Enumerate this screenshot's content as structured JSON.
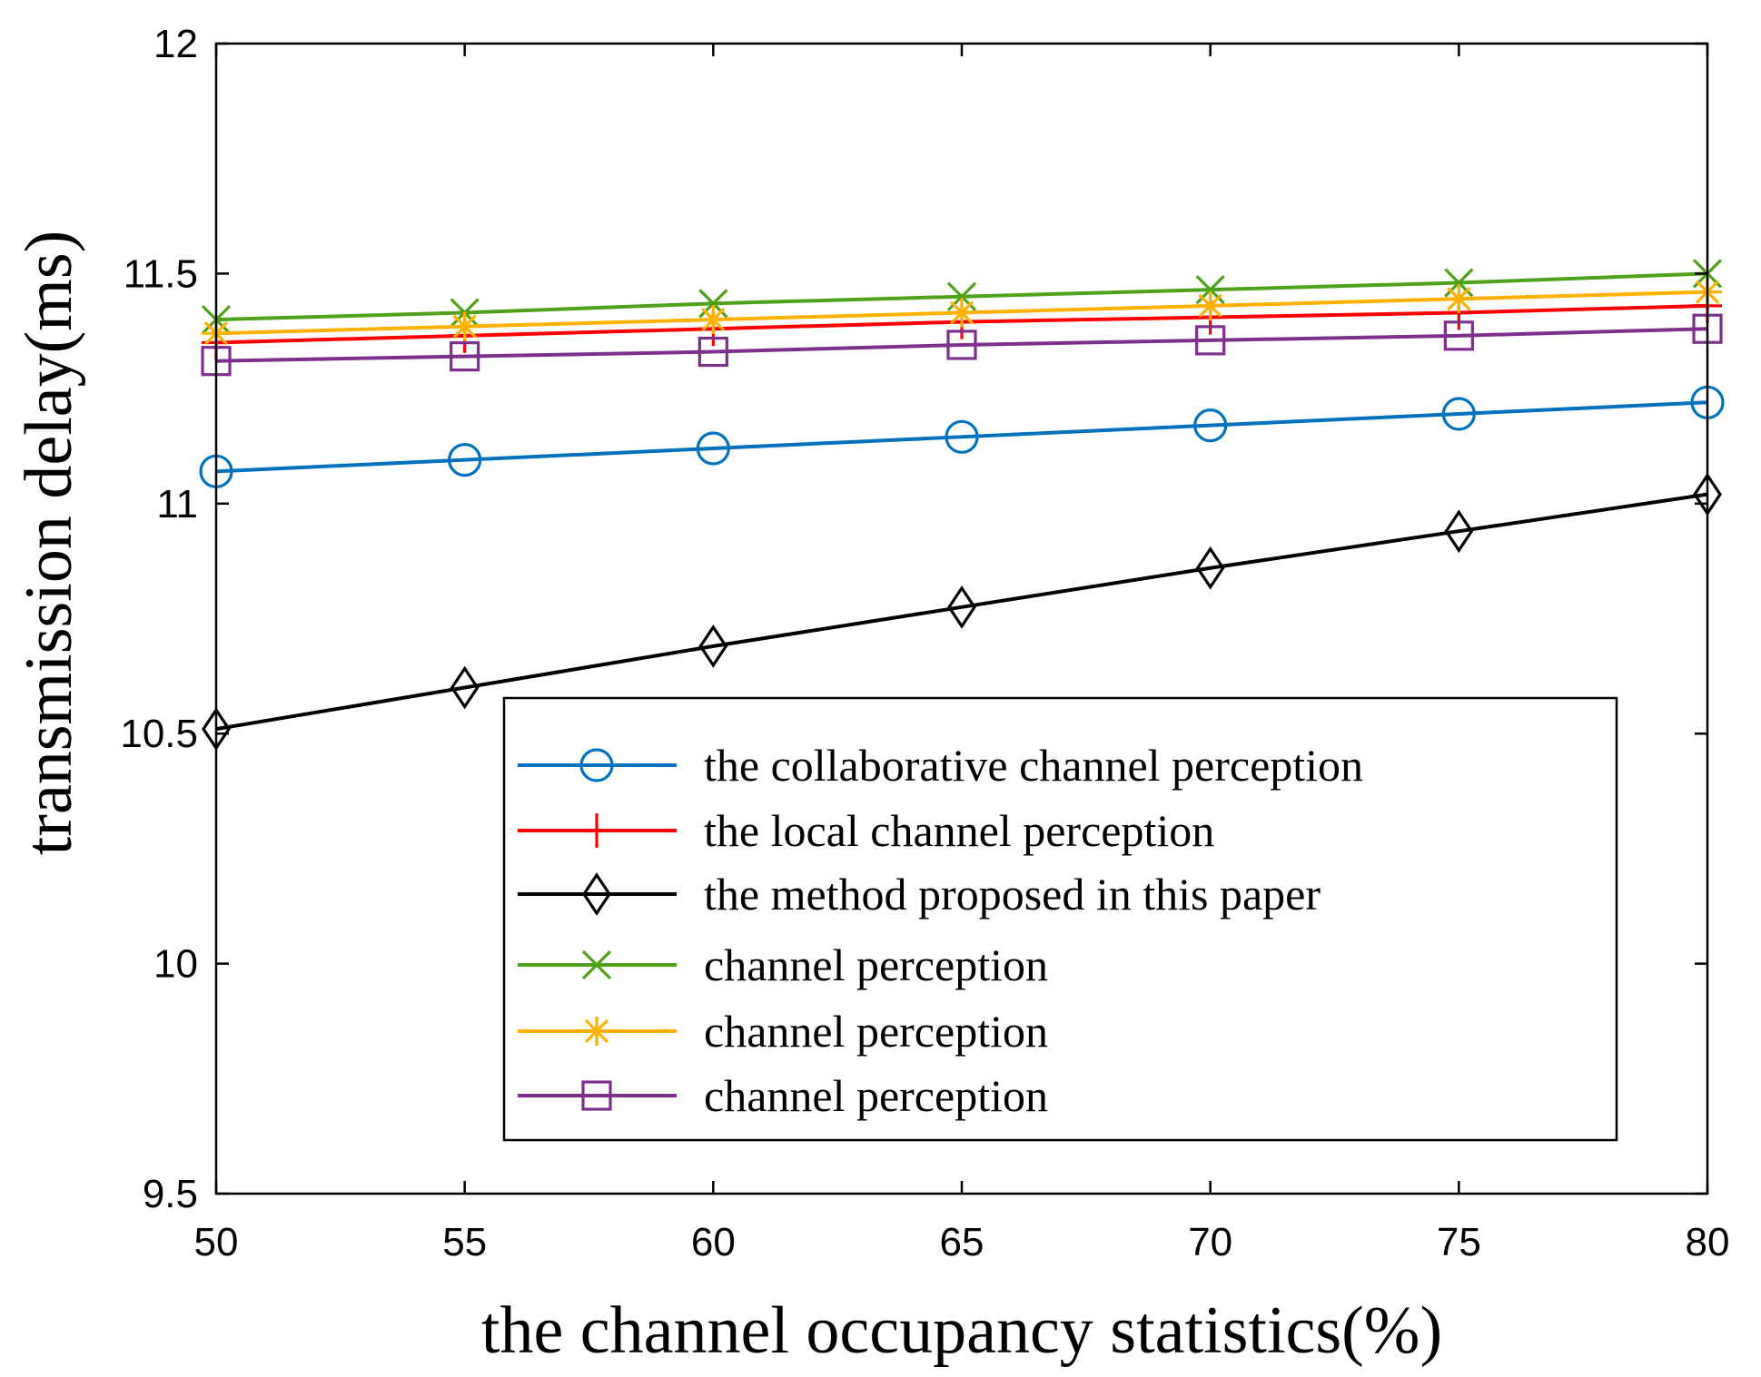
{
  "chart_data": {
    "type": "line",
    "title": "",
    "xlabel": "the channel occupancy statistics(%)",
    "ylabel": "transmission delay(ms)",
    "x": [
      50,
      55,
      60,
      65,
      70,
      75,
      80
    ],
    "xlim": [
      50,
      80
    ],
    "ylim": [
      9.5,
      12
    ],
    "xticks": [
      50,
      55,
      60,
      65,
      70,
      75,
      80
    ],
    "yticks": [
      9.5,
      10,
      10.5,
      11,
      11.5,
      12
    ],
    "xtick_labels": [
      "50",
      "55",
      "60",
      "65",
      "70",
      "75",
      "80"
    ],
    "ytick_labels": [
      "9.5",
      "10",
      "10.5",
      "11",
      "11.5",
      "12"
    ],
    "grid": false,
    "legend_position": "bottom-right",
    "series": [
      {
        "name": "the collaborative channel perception",
        "color": "#0072BD",
        "marker": "circle",
        "values": [
          11.07,
          11.095,
          11.12,
          11.145,
          11.17,
          11.195,
          11.22
        ]
      },
      {
        "name": "the local channel perception",
        "color": "#FF0000",
        "marker": "plus",
        "values": [
          11.35,
          11.365,
          11.38,
          11.395,
          11.405,
          11.415,
          11.43
        ]
      },
      {
        "name": "the method proposed in this paper",
        "color": "#000000",
        "marker": "diamond",
        "values": [
          10.51,
          10.6,
          10.69,
          10.775,
          10.86,
          10.94,
          11.02
        ]
      },
      {
        "name": "channel perception",
        "color": "#4DA219",
        "marker": "x",
        "values": [
          11.4,
          11.415,
          11.435,
          11.45,
          11.465,
          11.48,
          11.5
        ]
      },
      {
        "name": "channel perception",
        "color": "#FFB000",
        "marker": "asterisk",
        "values": [
          11.37,
          11.385,
          11.4,
          11.415,
          11.43,
          11.445,
          11.46
        ]
      },
      {
        "name": "channel perception",
        "color": "#7E2F8E",
        "marker": "square",
        "values": [
          11.31,
          11.32,
          11.33,
          11.345,
          11.355,
          11.365,
          11.38
        ]
      }
    ]
  }
}
